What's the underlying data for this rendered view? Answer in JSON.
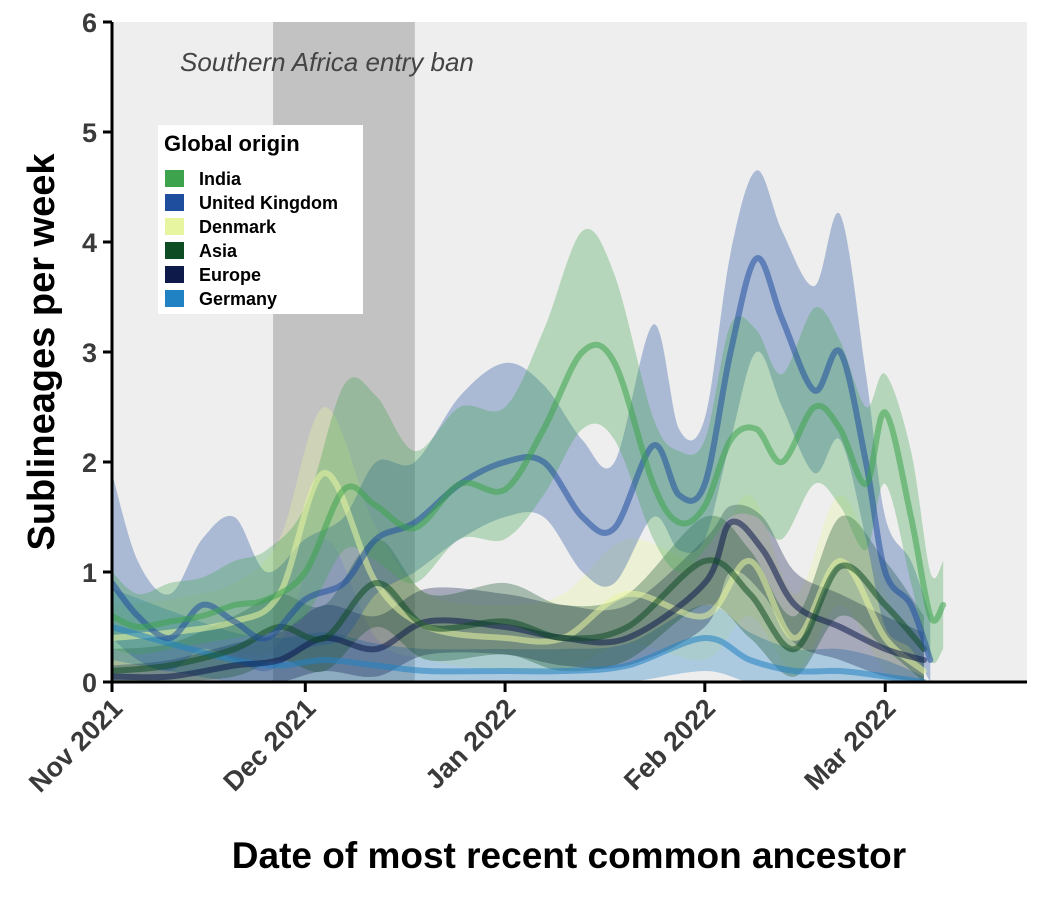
{
  "chart_data": {
    "type": "area",
    "xlabel": "Date of most recent common ancestor",
    "ylabel": "Sublineages per week",
    "xlim": [
      "2021-11-01",
      "2022-03-23"
    ],
    "ylim": [
      0,
      6
    ],
    "yticks": [
      0,
      1,
      2,
      3,
      4,
      5,
      6
    ],
    "xticks": [
      {
        "date": "2021-11-01",
        "label": "Nov 2021"
      },
      {
        "date": "2021-12-01",
        "label": "Dec 2021"
      },
      {
        "date": "2022-01-01",
        "label": "Jan 2022"
      },
      {
        "date": "2022-02-01",
        "label": "Feb 2022"
      },
      {
        "date": "2022-03-01",
        "label": "Mar 2022"
      }
    ],
    "background": "#eeeeee",
    "shaded_region": {
      "start": "2021-11-26",
      "end": "2021-12-18",
      "label": "Southern Africa entry ban",
      "color": "#c2c2c2"
    },
    "legend": {
      "title": "Global origin",
      "placement": "top-left"
    },
    "series": [
      {
        "name": "Denmark",
        "color": "#e8f5a0",
        "dates": [
          "2021-11-01",
          "2021-11-10",
          "2021-11-20",
          "2021-11-27",
          "2021-12-04",
          "2021-12-12",
          "2021-12-20",
          "2022-01-01",
          "2022-01-10",
          "2022-01-20",
          "2022-02-01",
          "2022-02-08",
          "2022-02-15",
          "2022-02-22",
          "2022-03-01",
          "2022-03-07"
        ],
        "mean": [
          0.4,
          0.45,
          0.55,
          0.8,
          1.9,
          0.9,
          0.5,
          0.4,
          0.4,
          0.8,
          0.6,
          1.1,
          0.4,
          1.1,
          0.4,
          0.1
        ],
        "lower": [
          0.1,
          0.15,
          0.25,
          0.35,
          1.3,
          0.4,
          0.2,
          0.1,
          0.1,
          0.35,
          0.2,
          0.6,
          0.1,
          0.7,
          0.1,
          0.0
        ],
        "upper": [
          0.7,
          0.75,
          0.9,
          1.3,
          2.5,
          1.4,
          0.8,
          0.7,
          0.8,
          1.3,
          1.1,
          1.7,
          0.8,
          1.7,
          0.8,
          0.2
        ]
      },
      {
        "name": "Germany",
        "color": "#2081c3",
        "dates": [
          "2021-11-01",
          "2021-11-10",
          "2021-11-20",
          "2021-11-27",
          "2021-12-04",
          "2021-12-12",
          "2021-12-20",
          "2022-01-01",
          "2022-01-10",
          "2022-01-20",
          "2022-02-01",
          "2022-02-08",
          "2022-02-15",
          "2022-02-22",
          "2022-03-01",
          "2022-03-07"
        ],
        "mean": [
          0.5,
          0.35,
          0.2,
          0.15,
          0.2,
          0.15,
          0.1,
          0.1,
          0.1,
          0.15,
          0.4,
          0.2,
          0.1,
          0.1,
          0.05,
          0.0
        ],
        "lower": [
          0.2,
          0.1,
          0.0,
          0.0,
          0.0,
          0.0,
          0.0,
          0.0,
          0.0,
          0.0,
          0.1,
          0.0,
          0.0,
          0.0,
          0.0,
          0.0
        ],
        "upper": [
          0.85,
          0.65,
          0.45,
          0.4,
          0.45,
          0.35,
          0.3,
          0.3,
          0.3,
          0.35,
          0.7,
          0.45,
          0.3,
          0.3,
          0.2,
          0.05
        ]
      },
      {
        "name": "Europe",
        "color": "#0d1a4a",
        "dates": [
          "2021-11-01",
          "2021-11-10",
          "2021-11-20",
          "2021-11-27",
          "2021-12-04",
          "2021-12-12",
          "2021-12-20",
          "2022-01-01",
          "2022-01-10",
          "2022-01-20",
          "2022-02-01",
          "2022-02-05",
          "2022-02-10",
          "2022-02-15",
          "2022-02-22",
          "2022-03-01",
          "2022-03-07"
        ],
        "mean": [
          0.05,
          0.05,
          0.15,
          0.2,
          0.4,
          0.3,
          0.55,
          0.5,
          0.4,
          0.4,
          0.9,
          1.45,
          1.2,
          0.7,
          0.5,
          0.3,
          0.2
        ],
        "lower": [
          0.0,
          0.0,
          0.0,
          0.0,
          0.1,
          0.05,
          0.25,
          0.25,
          0.15,
          0.15,
          0.5,
          1.0,
          0.8,
          0.35,
          0.2,
          0.05,
          0.0
        ],
        "upper": [
          0.15,
          0.2,
          0.35,
          0.45,
          0.7,
          0.6,
          0.85,
          0.8,
          0.7,
          0.7,
          1.3,
          1.6,
          1.5,
          1.0,
          0.8,
          0.6,
          0.45
        ]
      },
      {
        "name": "Asia",
        "color": "#0e4d24",
        "dates": [
          "2021-11-01",
          "2021-11-10",
          "2021-11-20",
          "2021-11-27",
          "2021-12-04",
          "2021-12-12",
          "2021-12-20",
          "2022-01-01",
          "2022-01-10",
          "2022-01-20",
          "2022-02-01",
          "2022-02-08",
          "2022-02-15",
          "2022-02-22",
          "2022-03-01",
          "2022-03-07"
        ],
        "mean": [
          0.1,
          0.15,
          0.3,
          0.5,
          0.4,
          0.9,
          0.5,
          0.55,
          0.4,
          0.5,
          1.1,
          0.8,
          0.3,
          1.05,
          0.7,
          0.3
        ],
        "lower": [
          0.0,
          0.0,
          0.05,
          0.2,
          0.1,
          0.5,
          0.2,
          0.25,
          0.1,
          0.2,
          0.7,
          0.4,
          0.05,
          0.6,
          0.3,
          0.0
        ],
        "upper": [
          0.3,
          0.35,
          0.6,
          0.8,
          0.7,
          1.3,
          0.8,
          0.9,
          0.7,
          0.8,
          1.5,
          1.2,
          0.6,
          1.5,
          1.1,
          0.6
        ]
      },
      {
        "name": "United Kingdom",
        "color": "#1f4e9e",
        "dates": [
          "2021-11-01",
          "2021-11-05",
          "2021-11-10",
          "2021-11-15",
          "2021-11-20",
          "2021-11-25",
          "2021-12-01",
          "2021-12-07",
          "2021-12-12",
          "2021-12-18",
          "2021-12-25",
          "2022-01-01",
          "2022-01-07",
          "2022-01-13",
          "2022-01-18",
          "2022-01-24",
          "2022-01-28",
          "2022-02-01",
          "2022-02-05",
          "2022-02-09",
          "2022-02-13",
          "2022-02-18",
          "2022-02-22",
          "2022-02-26",
          "2022-03-01",
          "2022-03-05",
          "2022-03-08"
        ],
        "mean": [
          0.9,
          0.6,
          0.4,
          0.7,
          0.55,
          0.4,
          0.75,
          0.9,
          1.3,
          1.45,
          1.8,
          2.0,
          2.0,
          1.5,
          1.4,
          2.15,
          1.7,
          1.8,
          3.0,
          3.85,
          3.3,
          2.65,
          3.0,
          2.0,
          1.0,
          0.7,
          0.2
        ],
        "lower": [
          0.4,
          0.2,
          0.1,
          0.3,
          0.2,
          0.1,
          0.3,
          0.4,
          0.8,
          1.0,
          1.3,
          1.5,
          1.5,
          1.0,
          0.9,
          1.5,
          1.2,
          1.3,
          2.2,
          3.0,
          2.5,
          1.9,
          2.2,
          1.3,
          0.5,
          0.3,
          0.0
        ],
        "upper": [
          1.9,
          1.1,
          0.8,
          1.3,
          1.5,
          1.0,
          1.3,
          1.5,
          2.0,
          2.0,
          2.6,
          2.9,
          2.7,
          2.2,
          2.0,
          3.25,
          2.3,
          2.4,
          3.9,
          4.65,
          4.1,
          3.6,
          4.25,
          2.8,
          1.5,
          1.1,
          0.6
        ]
      },
      {
        "name": "India",
        "color": "#3da44d",
        "dates": [
          "2021-11-01",
          "2021-11-05",
          "2021-11-10",
          "2021-11-15",
          "2021-11-20",
          "2021-11-25",
          "2021-12-01",
          "2021-12-07",
          "2021-12-12",
          "2021-12-18",
          "2021-12-25",
          "2022-01-01",
          "2022-01-07",
          "2022-01-13",
          "2022-01-18",
          "2022-01-24",
          "2022-01-28",
          "2022-02-01",
          "2022-02-05",
          "2022-02-09",
          "2022-02-13",
          "2022-02-18",
          "2022-02-22",
          "2022-02-26",
          "2022-03-01",
          "2022-03-05",
          "2022-03-08",
          "2022-03-10"
        ],
        "mean": [
          0.6,
          0.5,
          0.55,
          0.6,
          0.7,
          0.75,
          1.0,
          1.75,
          1.6,
          1.4,
          1.8,
          1.75,
          2.3,
          3.0,
          2.9,
          1.8,
          1.45,
          1.6,
          2.2,
          2.3,
          2.0,
          2.5,
          2.3,
          1.8,
          2.45,
          1.5,
          0.6,
          0.7
        ],
        "lower": [
          0.3,
          0.25,
          0.3,
          0.35,
          0.4,
          0.45,
          0.6,
          1.2,
          1.1,
          0.9,
          1.3,
          1.3,
          1.7,
          2.3,
          2.2,
          1.3,
          1.0,
          1.2,
          1.5,
          1.5,
          1.3,
          1.8,
          1.6,
          1.2,
          1.8,
          0.9,
          0.2,
          0.3
        ],
        "upper": [
          1.0,
          0.8,
          0.9,
          0.95,
          1.1,
          1.2,
          1.6,
          2.7,
          2.6,
          2.1,
          2.5,
          2.5,
          3.2,
          4.1,
          3.7,
          2.4,
          2.1,
          2.2,
          3.25,
          3.2,
          2.8,
          3.4,
          3.1,
          2.5,
          2.8,
          2.1,
          1.0,
          1.1
        ]
      }
    ]
  }
}
